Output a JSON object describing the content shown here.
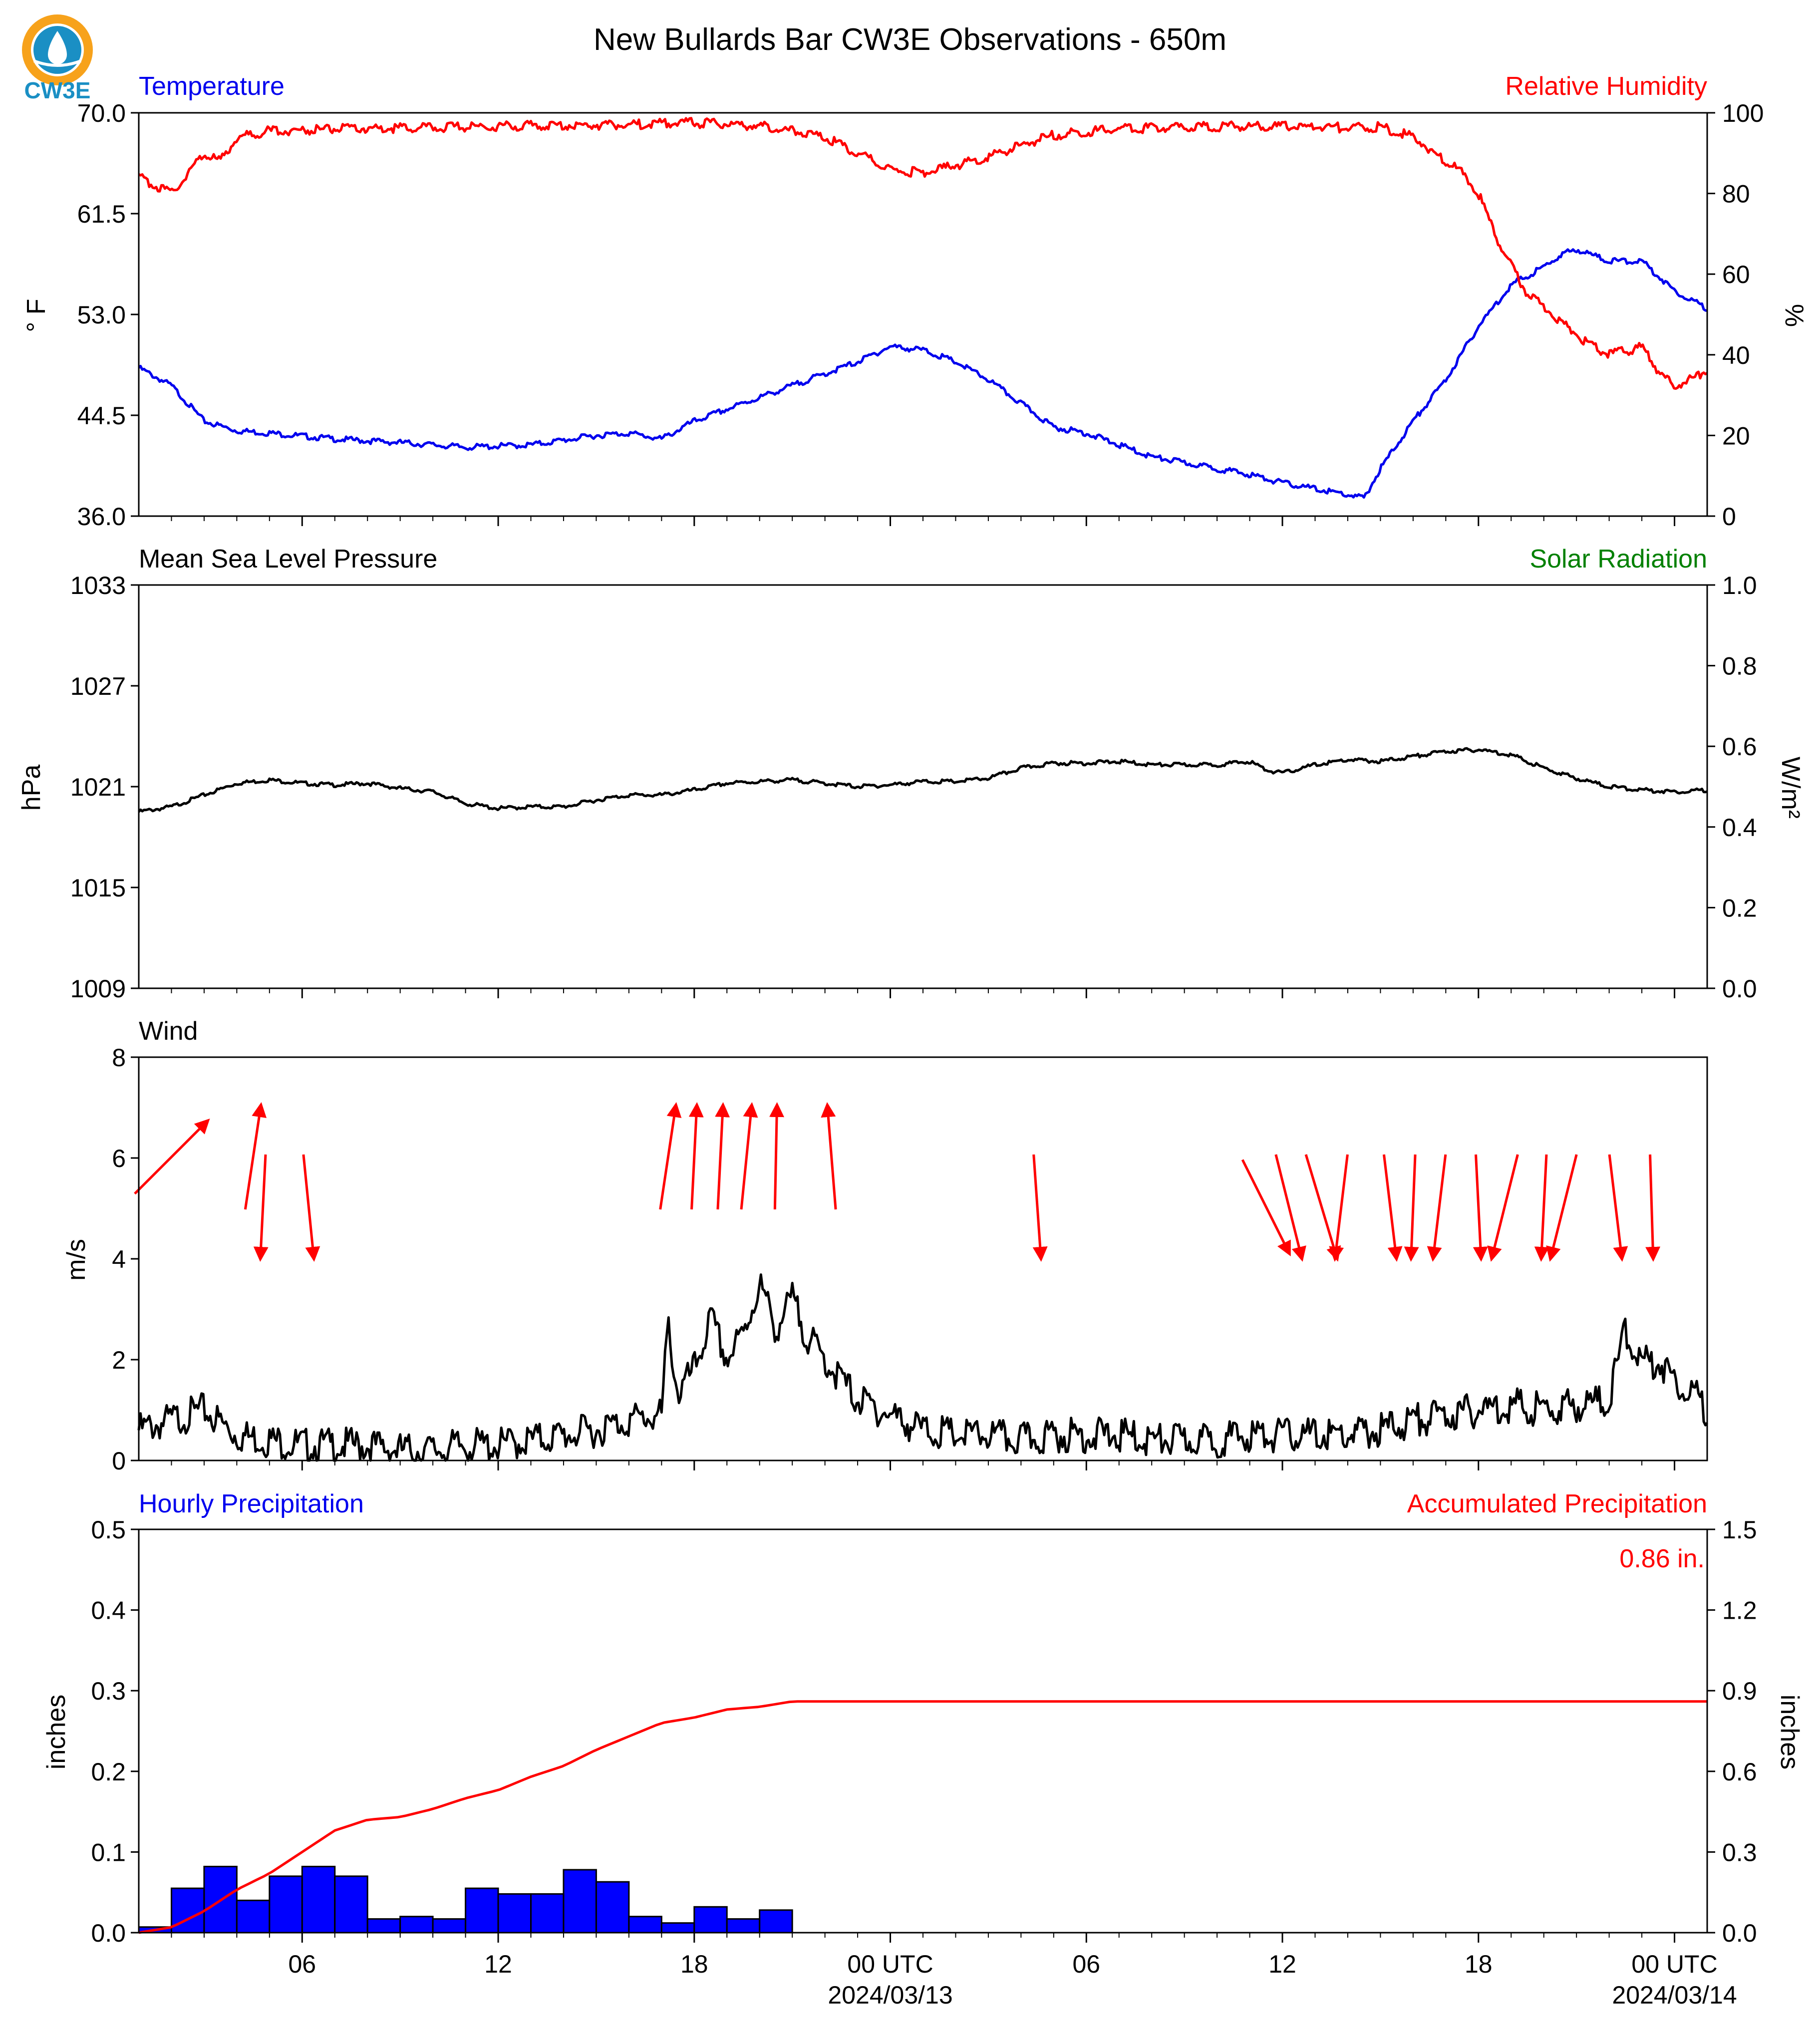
{
  "figure": {
    "title": "New Bullards Bar CW3E Observations - 650m",
    "logo_text": "CW3E"
  },
  "colors": {
    "temperature": "#0000ee",
    "humidity": "#ff0000",
    "solar": "#008000",
    "pressure": "#000000",
    "wind_speed": "#000000",
    "wind_arrow": "#ff0000",
    "precip_bar": "#0000ff",
    "accum": "#ff0000",
    "logo_ring": "#f7a21b",
    "logo_drop": "#1a8fc4"
  },
  "time_axis": {
    "hours_range": [
      0,
      48
    ],
    "tick_labels": [
      {
        "h": 5,
        "label": "06"
      },
      {
        "h": 11,
        "label": "12"
      },
      {
        "h": 17,
        "label": "18"
      },
      {
        "h": 23,
        "label": "00 UTC",
        "date": "2024/03/13"
      },
      {
        "h": 29,
        "label": "06"
      },
      {
        "h": 35,
        "label": "12"
      },
      {
        "h": 41,
        "label": "18"
      },
      {
        "h": 47,
        "label": "00 UTC",
        "date": "2024/03/14"
      }
    ]
  },
  "chart_data": [
    {
      "type": "line",
      "title_left": "Temperature",
      "title_right": "Relative Humidity",
      "ylabel_left": "° F",
      "ylabel_right": "%",
      "ylim_left": [
        36.0,
        70.0
      ],
      "ylim_right": [
        0,
        100
      ],
      "yticks_left": [
        "36.0",
        "44.5",
        "53.0",
        "61.5",
        "70.0"
      ],
      "yticks_right": [
        "0",
        "20",
        "40",
        "60",
        "80",
        "100"
      ],
      "series": [
        {
          "name": "Temperature",
          "axis": "left",
          "x": [
            0,
            1,
            2,
            3,
            4,
            6,
            8,
            10,
            12,
            14,
            15,
            16,
            17,
            19,
            20,
            21,
            22,
            23,
            24,
            25,
            26,
            27,
            28,
            29,
            30,
            31,
            32,
            33,
            34,
            35,
            36,
            37,
            37.5,
            38,
            39,
            40,
            41,
            42,
            43,
            43.5,
            44,
            45,
            46,
            47,
            48
          ],
          "y": [
            48.5,
            47.0,
            44.0,
            43.2,
            43.0,
            42.5,
            42.2,
            41.8,
            42.0,
            42.8,
            43.0,
            42.5,
            44.0,
            46.0,
            47.0,
            48.0,
            49.0,
            50.3,
            50.0,
            49.0,
            47.5,
            45.5,
            43.5,
            43.0,
            42.0,
            41.0,
            40.5,
            40.0,
            39.5,
            38.8,
            38.3,
            37.8,
            37.5,
            40.0,
            44.0,
            47.5,
            52.0,
            55.5,
            57.0,
            58.0,
            58.5,
            57.5,
            57.5,
            55.0,
            53.5
          ]
        },
        {
          "name": "Relative Humidity",
          "axis": "right",
          "x": [
            0,
            0.5,
            1,
            1.5,
            2,
            2.5,
            3,
            4,
            6,
            8,
            10,
            12,
            14,
            16,
            17,
            19,
            20,
            21,
            21.5,
            22,
            23,
            24,
            25,
            26,
            27,
            28,
            30,
            32,
            34,
            36,
            37,
            38,
            39,
            40,
            40.5,
            41,
            41.5,
            42,
            42.5,
            43,
            44,
            44.5,
            45,
            46,
            46.5,
            47,
            48
          ],
          "y": [
            84,
            82,
            80,
            85,
            90,
            88,
            94,
            95.5,
            96,
            96.2,
            96.5,
            96.8,
            97,
            97.3,
            97.5,
            96.8,
            95.5,
            94,
            92,
            90,
            86,
            85,
            87,
            89,
            92,
            94.5,
            96,
            96.5,
            96.7,
            96.5,
            96.3,
            96.5,
            94,
            88,
            85,
            80,
            70,
            62,
            55,
            52,
            45,
            42,
            40,
            42,
            36,
            32,
            36
          ]
        }
      ]
    },
    {
      "type": "line",
      "title_left": "Mean Sea Level Pressure",
      "title_right": "Solar Radiation",
      "ylabel_left": "hPa",
      "ylabel_right": "W/m²",
      "ylim_left": [
        1009,
        1033
      ],
      "ylim_right": [
        0.0,
        1.0
      ],
      "yticks_left": [
        "1009",
        "1015",
        "1021",
        "1027",
        "1033"
      ],
      "yticks_right": [
        "0.0",
        "0.2",
        "0.4",
        "0.6",
        "0.8",
        "1.0"
      ],
      "series": [
        {
          "name": "Mean Sea Level Pressure",
          "axis": "left",
          "x": [
            0,
            1,
            2,
            3,
            4,
            5,
            6,
            7,
            8,
            9,
            10,
            11,
            12,
            13,
            14,
            15,
            16,
            17,
            18,
            19,
            20,
            21,
            22,
            23,
            24,
            25,
            26,
            27,
            28,
            29,
            30,
            31,
            32,
            33,
            34,
            34.5,
            35,
            36,
            37,
            38,
            39,
            40,
            41,
            42,
            43,
            44,
            45,
            46,
            47,
            48
          ],
          "y": [
            1019.5,
            1019.8,
            1020.5,
            1021.2,
            1021.4,
            1021.2,
            1021.1,
            1021.2,
            1020.9,
            1020.7,
            1020.0,
            1019.7,
            1019.8,
            1019.8,
            1020.2,
            1020.5,
            1020.5,
            1020.8,
            1021.2,
            1021.3,
            1021.4,
            1021.2,
            1021.0,
            1021.1,
            1021.3,
            1021.3,
            1021.5,
            1022.1,
            1022.4,
            1022.4,
            1022.5,
            1022.3,
            1022.3,
            1022.3,
            1022.5,
            1022.0,
            1021.8,
            1022.3,
            1022.6,
            1022.5,
            1022.8,
            1023.1,
            1023.2,
            1022.9,
            1022.1,
            1021.5,
            1021.0,
            1020.8,
            1020.7,
            1020.8
          ]
        }
      ]
    },
    {
      "type": "line",
      "title_left": "Wind",
      "ylabel_left": "m/s",
      "ylim_left": [
        0,
        8
      ],
      "yticks_left": [
        "0",
        "2",
        "4",
        "6",
        "8"
      ],
      "series": [
        {
          "name": "Wind",
          "axis": "left",
          "x": [
            0,
            1,
            2,
            3,
            4,
            5,
            6,
            7,
            8,
            9,
            10,
            11,
            12,
            13,
            14,
            15,
            16,
            16.2,
            16.5,
            17,
            17.5,
            18,
            18.5,
            19,
            19.5,
            20,
            20.5,
            21,
            21.5,
            22,
            23,
            24,
            25,
            26,
            27,
            28,
            29,
            30,
            31,
            32,
            33,
            34,
            35,
            36,
            37,
            38,
            39,
            40,
            41,
            42,
            43,
            44,
            45,
            45.5,
            46,
            46.5,
            47,
            47.5,
            48
          ],
          "y": [
            0.6,
            0.8,
            1.0,
            0.5,
            0.4,
            0.3,
            0.3,
            0.3,
            0.2,
            0.2,
            0.3,
            0.3,
            0.4,
            0.5,
            0.6,
            0.8,
            0.9,
            2.7,
            1.3,
            1.8,
            2.8,
            2.0,
            2.5,
            3.5,
            2.6,
            3.2,
            2.4,
            2.0,
            1.6,
            1.2,
            0.9,
            0.6,
            0.5,
            0.5,
            0.4,
            0.5,
            0.5,
            0.5,
            0.4,
            0.4,
            0.4,
            0.5,
            0.5,
            0.5,
            0.5,
            0.6,
            0.8,
            0.9,
            1.0,
            1.1,
            1.0,
            1.1,
            1.2,
            2.6,
            1.9,
            2.0,
            1.6,
            1.4,
            1.0
          ],
          "wind_barbs": [
            {
              "h": 1.0,
              "dir": "NE",
              "dx": 0.7,
              "dy": -0.7
            },
            {
              "h": 3.5,
              "dir": "N",
              "dx": 0.15,
              "dy": -1
            },
            {
              "h": 3.8,
              "dir": "S",
              "dx": -0.05,
              "dy": 1
            },
            {
              "h": 5.2,
              "dir": "S",
              "dx": 0.1,
              "dy": 1
            },
            {
              "h": 16.2,
              "dir": "N",
              "dx": 0.15,
              "dy": -1
            },
            {
              "h": 17.0,
              "dir": "N",
              "dx": 0.05,
              "dy": -1
            },
            {
              "h": 17.8,
              "dir": "N",
              "dx": 0.05,
              "dy": -1
            },
            {
              "h": 18.6,
              "dir": "N",
              "dx": 0.1,
              "dy": -1
            },
            {
              "h": 19.5,
              "dir": "N",
              "dx": 0.02,
              "dy": -1
            },
            {
              "h": 21.2,
              "dir": "N",
              "dx": -0.08,
              "dy": -1
            },
            {
              "h": 27.5,
              "dir": "S",
              "dx": 0.07,
              "dy": 1
            },
            {
              "h": 34.5,
              "dir": "SE",
              "dx": 0.45,
              "dy": 0.9
            },
            {
              "h": 35.2,
              "dir": "S",
              "dx": 0.25,
              "dy": 1
            },
            {
              "h": 36.2,
              "dir": "S",
              "dx": 0.3,
              "dy": 1
            },
            {
              "h": 36.8,
              "dir": "S",
              "dx": -0.12,
              "dy": 1
            },
            {
              "h": 38.3,
              "dir": "S",
              "dx": 0.12,
              "dy": 1
            },
            {
              "h": 39.0,
              "dir": "S",
              "dx": -0.04,
              "dy": 1
            },
            {
              "h": 39.8,
              "dir": "S",
              "dx": -0.12,
              "dy": 1
            },
            {
              "h": 41.0,
              "dir": "S",
              "dx": 0.05,
              "dy": 1
            },
            {
              "h": 41.8,
              "dir": "S",
              "dx": -0.25,
              "dy": 1
            },
            {
              "h": 43.0,
              "dir": "S",
              "dx": -0.05,
              "dy": 1
            },
            {
              "h": 43.6,
              "dir": "S",
              "dx": -0.25,
              "dy": 1
            },
            {
              "h": 45.2,
              "dir": "S",
              "dx": 0.12,
              "dy": 1
            },
            {
              "h": 46.3,
              "dir": "S",
              "dx": 0.03,
              "dy": 1
            }
          ]
        }
      ]
    },
    {
      "type": "bar",
      "title_left": "Hourly Precipitation",
      "title_right": "Accumulated Precipitation",
      "annotation": "0.86 in.",
      "ylabel_left": "inches",
      "ylabel_right": "inches",
      "ylim_left": [
        0.0,
        0.5
      ],
      "ylim_right": [
        0.0,
        1.5
      ],
      "yticks_left": [
        "0.0",
        "0.1",
        "0.2",
        "0.3",
        "0.4",
        "0.5"
      ],
      "yticks_right": [
        "0.0",
        "0.3",
        "0.6",
        "0.9",
        "1.2",
        "1.5"
      ],
      "categories": [
        0,
        1,
        2,
        3,
        4,
        5,
        6,
        7,
        8,
        9,
        10,
        11,
        12,
        13,
        14,
        15,
        16,
        17,
        18,
        19
      ],
      "series": [
        {
          "name": "Hourly Precipitation",
          "axis": "left",
          "values": [
            0.007,
            0.055,
            0.082,
            0.04,
            0.07,
            0.082,
            0.07,
            0.017,
            0.02,
            0.017,
            0.055,
            0.048,
            0.048,
            0.078,
            0.063,
            0.02,
            0.012,
            0.032,
            0.017,
            0.028
          ]
        },
        {
          "name": "Accumulated Precipitation",
          "axis": "right",
          "x": [
            0,
            1,
            2,
            3,
            4,
            5,
            6,
            7,
            8,
            9,
            10,
            11,
            12,
            13,
            14,
            15,
            16,
            17,
            18,
            19,
            19.5,
            20,
            48
          ],
          "y": [
            0.0,
            0.02,
            0.08,
            0.16,
            0.22,
            0.3,
            0.38,
            0.42,
            0.43,
            0.46,
            0.5,
            0.53,
            0.58,
            0.62,
            0.68,
            0.73,
            0.78,
            0.8,
            0.83,
            0.84,
            0.85,
            0.86,
            0.86
          ]
        }
      ]
    }
  ]
}
